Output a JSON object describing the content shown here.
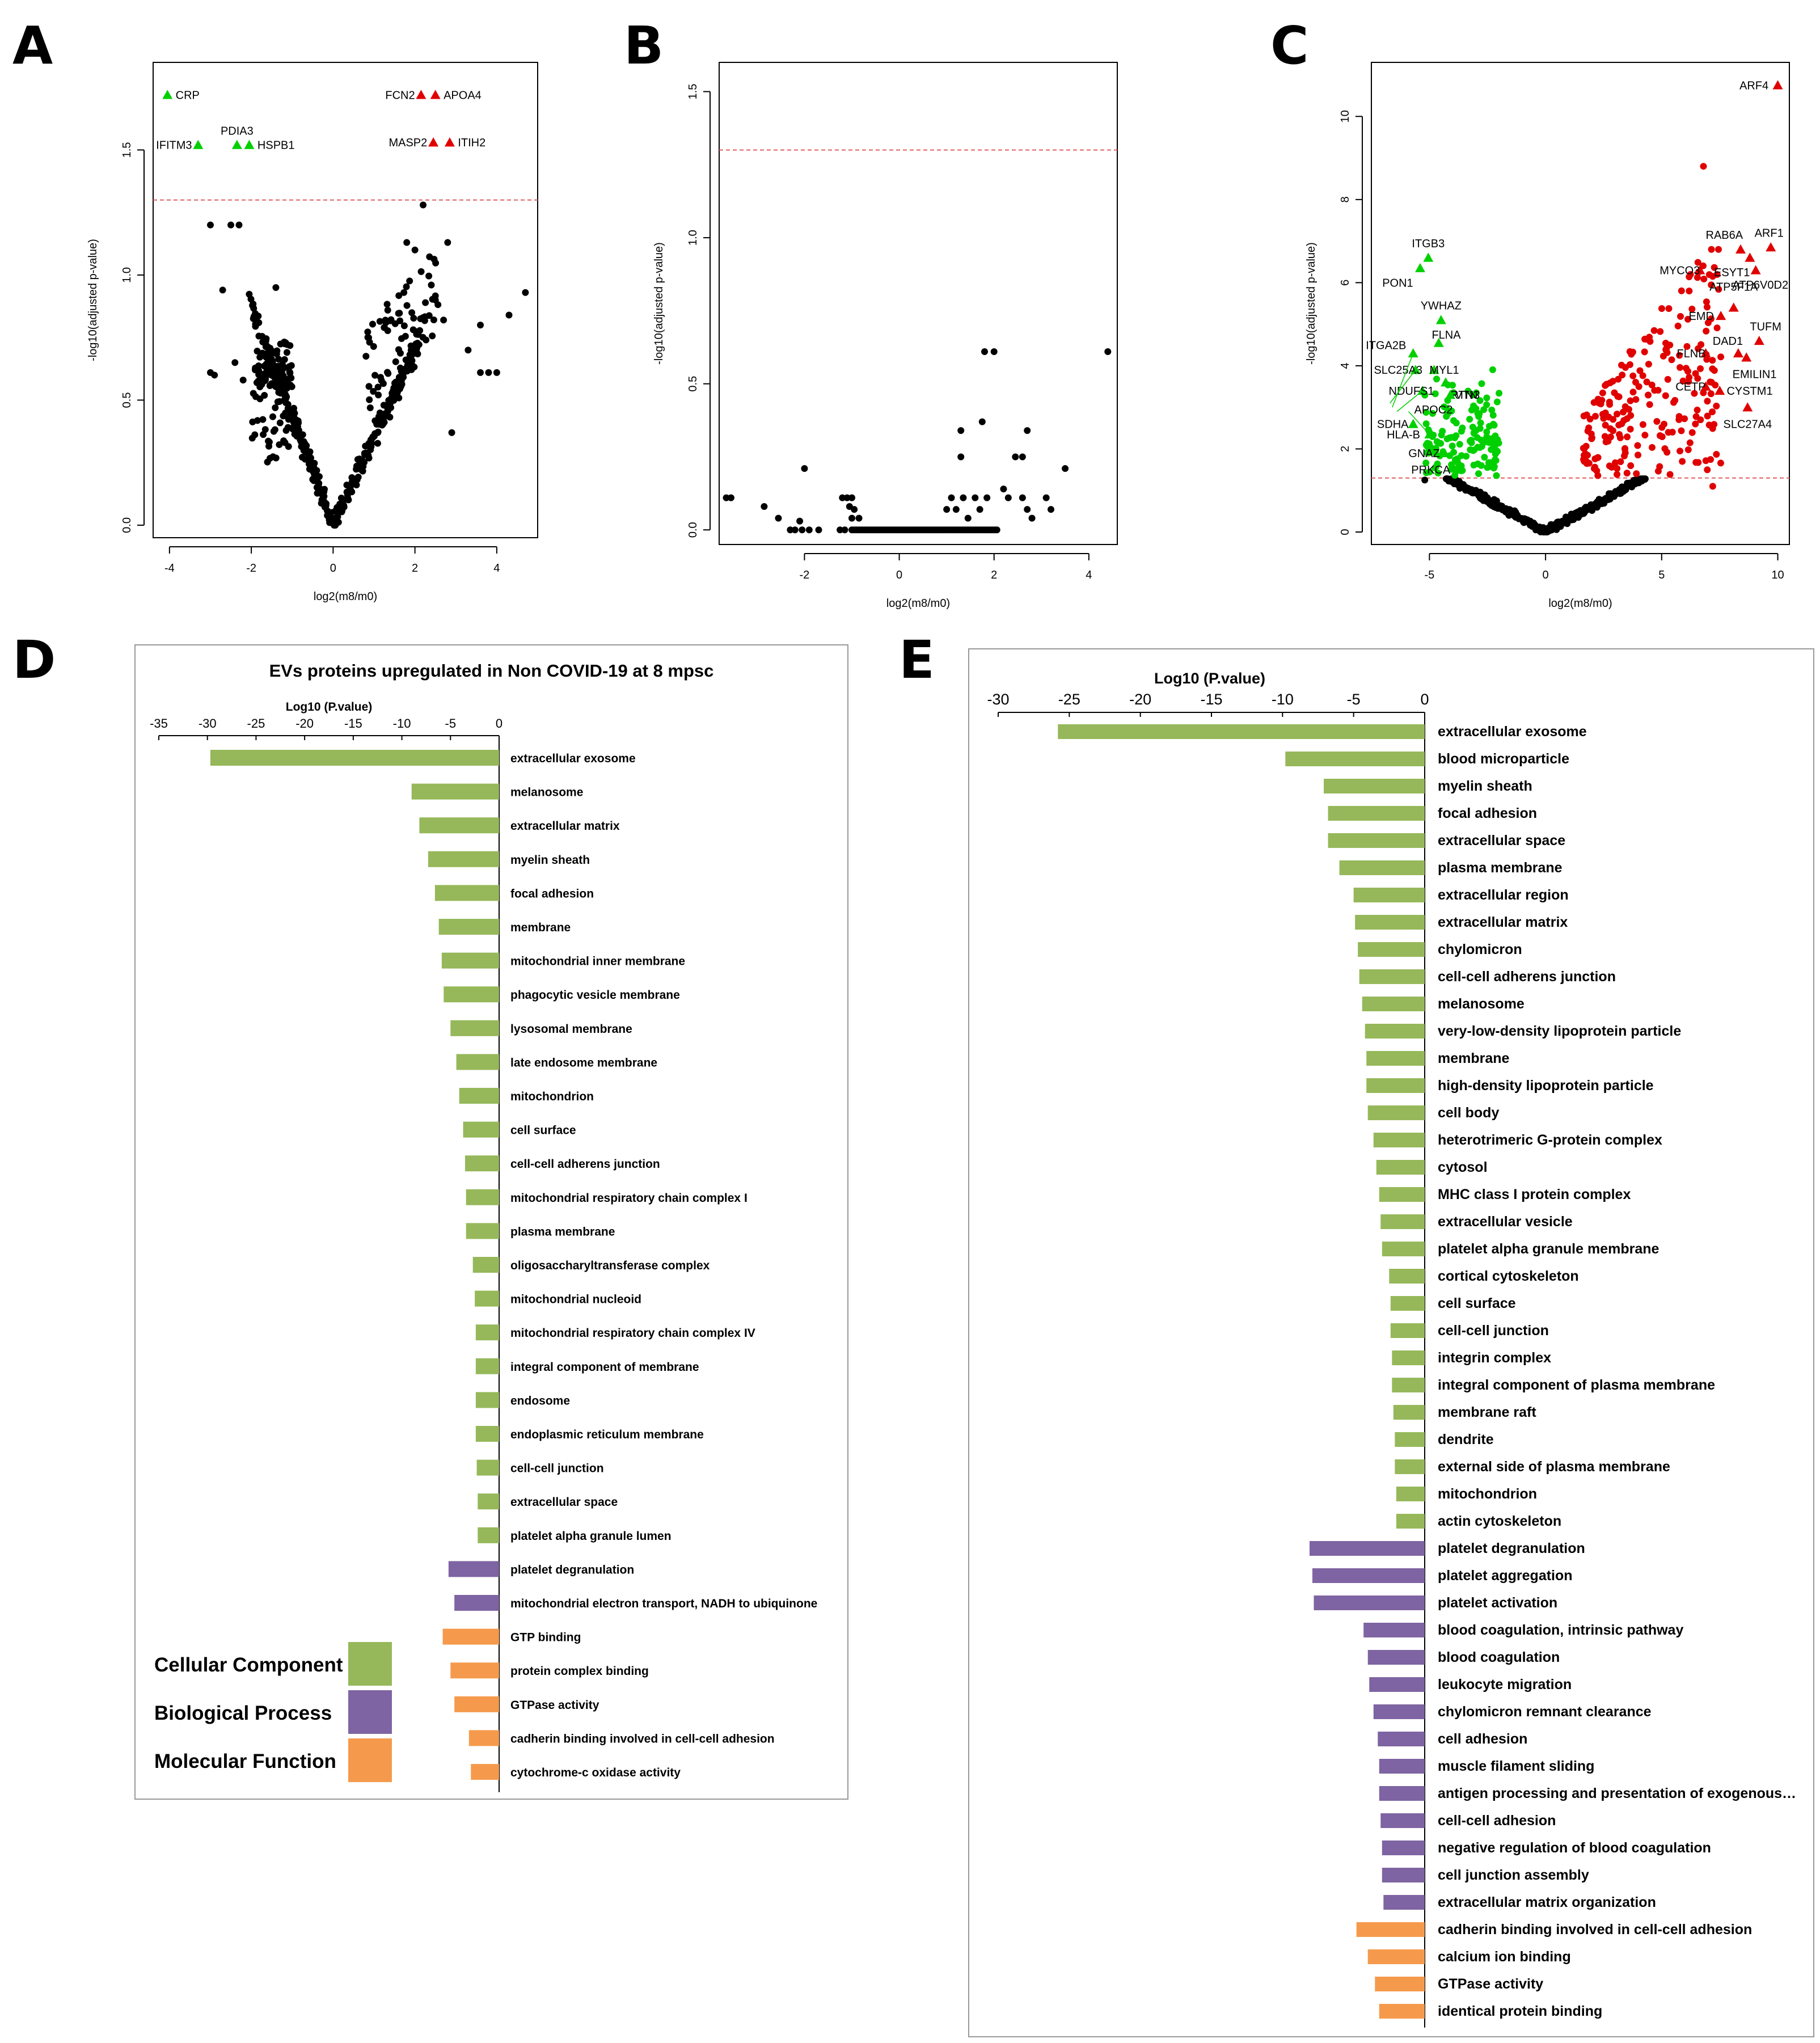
{
  "colors": {
    "cc": "#96b85a",
    "bp": "#7e64a2",
    "mf": "#f59a4c",
    "up": "#e00000",
    "down": "#00d000",
    "neutral": "#000000",
    "threshold": "#e06060"
  },
  "panels": {
    "a": "A",
    "b": "B",
    "c": "C",
    "d": "D",
    "e": "E"
  },
  "legend": {
    "cc": "Cellular Component",
    "bp": "Biological Process",
    "mf": "Molecular Function"
  },
  "chart_data": [
    {
      "id": "A",
      "type": "scatter",
      "xlabel": "log2(m8/m0)",
      "ylabel": "-log10(adjusted p-value)",
      "xlim": [
        -4.4,
        5.0
      ],
      "ylim": [
        -0.05,
        1.85
      ],
      "xticks": [
        -4,
        -2,
        0,
        2,
        4
      ],
      "yticks": [
        0.0,
        0.5,
        1.0,
        1.5
      ],
      "ytick_labels": [
        "0.0",
        "0.5",
        "1.0",
        "1.5"
      ],
      "threshold": 1.3,
      "labeled_points": [
        {
          "label": "CRP",
          "x": -4.05,
          "y": 1.72,
          "dir": "down",
          "anchor": "start",
          "dx": 0.2
        },
        {
          "label": "PDIA3",
          "x": -2.35,
          "y": 1.52,
          "dir": "down",
          "anchor": "middle",
          "dy": 0.05
        },
        {
          "label": "IFITM3",
          "x": -3.3,
          "y": 1.52,
          "dir": "down",
          "anchor": "end",
          "dx": -0.15
        },
        {
          "label": "HSPB1",
          "x": -2.05,
          "y": 1.52,
          "dir": "down",
          "anchor": "start",
          "dx": 0.2
        },
        {
          "label": "FCN2",
          "x": 2.15,
          "y": 1.72,
          "dir": "up",
          "anchor": "end",
          "dx": -0.15
        },
        {
          "label": "APOA4",
          "x": 2.5,
          "y": 1.72,
          "dir": "up",
          "anchor": "start",
          "dx": 0.2
        },
        {
          "label": "MASP2",
          "x": 2.45,
          "y": 1.53,
          "dir": "up",
          "anchor": "end",
          "dx": -0.15
        },
        {
          "label": "ITIH2",
          "x": 2.85,
          "y": 1.53,
          "dir": "up",
          "anchor": "start",
          "dx": 0.2
        }
      ],
      "outliers": [
        [
          -3.0,
          1.2
        ],
        [
          -2.5,
          1.2
        ],
        [
          -2.3,
          1.2
        ],
        [
          -2.7,
          0.94
        ],
        [
          -1.4,
          0.95
        ],
        [
          2.2,
          1.28
        ],
        [
          1.8,
          1.13
        ],
        [
          2.0,
          1.1
        ],
        [
          2.8,
          1.13
        ],
        [
          2.4,
          0.96
        ],
        [
          2.5,
          0.9
        ],
        [
          2.2,
          0.83
        ],
        [
          2.7,
          0.82
        ],
        [
          4.7,
          0.93
        ],
        [
          3.6,
          0.8
        ],
        [
          4.3,
          0.84
        ],
        [
          3.3,
          0.7
        ],
        [
          3.6,
          0.61
        ],
        [
          3.8,
          0.61
        ],
        [
          4.0,
          0.61
        ],
        [
          2.9,
          0.37
        ],
        [
          -3.0,
          0.61
        ],
        [
          -2.9,
          0.6
        ],
        [
          -2.4,
          0.65
        ],
        [
          -2.2,
          0.58
        ]
      ],
      "cloud": {
        "left_slope": 0.44,
        "right_slope": 0.35
      }
    },
    {
      "id": "B",
      "type": "scatter",
      "xlabel": "log2(m8/m0)",
      "ylabel": "-log10(adjusted p-value)",
      "xlim": [
        -3.8,
        4.6
      ],
      "ylim": [
        -0.05,
        1.6
      ],
      "xticks": [
        -2,
        0,
        2,
        4
      ],
      "yticks": [
        0.0,
        0.5,
        1.0,
        1.5
      ],
      "ytick_labels": [
        "0.0",
        "0.5",
        "1.0",
        "1.5"
      ],
      "threshold": 1.3,
      "points": [
        [
          -3.65,
          0.11
        ],
        [
          -3.55,
          0.11
        ],
        [
          -2.85,
          0.08
        ],
        [
          -2.55,
          0.04
        ],
        [
          -2.3,
          0.0
        ],
        [
          -2.2,
          0.0
        ],
        [
          -2.05,
          0.0
        ],
        [
          -1.9,
          0.0
        ],
        [
          -1.7,
          0.0
        ],
        [
          -2.1,
          0.03
        ],
        [
          -2.0,
          0.21
        ],
        [
          -1.2,
          0.11
        ],
        [
          -1.1,
          0.11
        ],
        [
          -1.05,
          0.08
        ],
        [
          -1.0,
          0.11
        ],
        [
          -0.95,
          0.07
        ],
        [
          -1.25,
          0.0
        ],
        [
          -1.15,
          0.0
        ],
        [
          -1.0,
          0.04
        ],
        [
          -0.85,
          0.04
        ],
        [
          1.0,
          0.07
        ],
        [
          1.1,
          0.11
        ],
        [
          1.2,
          0.07
        ],
        [
          1.35,
          0.11
        ],
        [
          1.45,
          0.04
        ],
        [
          1.6,
          0.11
        ],
        [
          1.7,
          0.07
        ],
        [
          1.85,
          0.11
        ],
        [
          2.3,
          0.11
        ],
        [
          2.6,
          0.11
        ],
        [
          2.7,
          0.07
        ],
        [
          2.8,
          0.04
        ],
        [
          3.1,
          0.11
        ],
        [
          3.2,
          0.07
        ],
        [
          1.3,
          0.34
        ],
        [
          1.75,
          0.37
        ],
        [
          1.8,
          0.61
        ],
        [
          2.0,
          0.61
        ],
        [
          2.45,
          0.25
        ],
        [
          2.6,
          0.25
        ],
        [
          2.7,
          0.34
        ],
        [
          3.5,
          0.21
        ],
        [
          4.4,
          0.61
        ],
        [
          1.3,
          0.25
        ],
        [
          2.2,
          0.14
        ]
      ],
      "baseline": {
        "from": -1.0,
        "to": 2.1,
        "step": 0.045
      }
    },
    {
      "id": "C",
      "type": "scatter",
      "xlabel": "log2(m8/m0)",
      "ylabel": "-log10(adjusted p-value)",
      "xlim": [
        -7.5,
        10.5
      ],
      "ylim": [
        -0.3,
        11.3
      ],
      "xticks": [
        -5,
        0,
        5,
        10
      ],
      "yticks": [
        0,
        2,
        4,
        6,
        8,
        10
      ],
      "ytick_labels": [
        "0",
        "2",
        "4",
        "6",
        "8",
        "10"
      ],
      "threshold": 1.3,
      "labeled_points": [
        {
          "label": "ARF4",
          "x": 10.0,
          "y": 10.75,
          "dir": "up",
          "anchor": "end",
          "dx": -0.4
        },
        {
          "label": "ITGB3",
          "x": -5.05,
          "y": 6.6,
          "dir": "down",
          "anchor": "middle",
          "dy": 0.35
        },
        {
          "label": "PON1",
          "x": -5.4,
          "y": 6.35,
          "dir": "down",
          "anchor": "end",
          "dx": -0.3,
          "dy": -0.35
        },
        {
          "label": "YWHAZ",
          "x": -4.5,
          "y": 5.1,
          "dir": "down",
          "anchor": "middle",
          "dy": 0.35
        },
        {
          "label": "FLNA",
          "x": -4.6,
          "y": 4.55,
          "dir": "down",
          "anchor": "start",
          "dx": -0.3,
          "dy": 0.2
        },
        {
          "label": "ITGA2B",
          "x": -5.7,
          "y": 4.3,
          "dir": "down",
          "anchor": "end",
          "dx": -0.3,
          "dy": 0.2
        },
        {
          "label": "SLC25A3",
          "x": -5.6,
          "y": 3.9,
          "dir": "down",
          "anchor": "end",
          "dx": 0.3
        },
        {
          "label": "MYL1",
          "x": -4.8,
          "y": 3.9,
          "dir": "down",
          "anchor": "start",
          "dx": -0.2
        },
        {
          "label": "RTN3",
          "x": -4.3,
          "y": 3.6,
          "dir": "down",
          "anchor": "start",
          "dx": 0.2,
          "dy": -0.3
        },
        {
          "label": "NDUFS1",
          "x": -5.3,
          "y": 3.4,
          "dir": "down",
          "anchor": "end",
          "dx": 0.5
        },
        {
          "label": "VTN",
          "x": -4.1,
          "y": 3.3,
          "dir": "down",
          "anchor": "start",
          "dx": 0.2
        },
        {
          "label": "APOC2",
          "x": -4.2,
          "y": 2.95,
          "dir": "down",
          "anchor": "end",
          "dx": 0.2
        },
        {
          "label": "SDHA",
          "x": -5.7,
          "y": 2.6,
          "dir": "down",
          "anchor": "end",
          "dx": -0.2
        },
        {
          "label": "HLA-B",
          "x": -5.0,
          "y": 2.35,
          "dir": "down",
          "anchor": "end",
          "dx": -0.4
        },
        {
          "label": "GNAZ",
          "x": -4.35,
          "y": 1.9,
          "dir": "down",
          "anchor": "end",
          "dx": -0.2
        },
        {
          "label": "PRKCA",
          "x": -3.8,
          "y": 1.5,
          "dir": "down",
          "anchor": "end",
          "dx": -0.3
        },
        {
          "label": "RAB6A",
          "x": 8.4,
          "y": 6.8,
          "dir": "up",
          "anchor": "end",
          "dx": 0.1,
          "dy": 0.35
        },
        {
          "label": "ARF1",
          "x": 9.7,
          "y": 6.85,
          "dir": "up",
          "anchor": "start",
          "dx": -0.7,
          "dy": 0.35
        },
        {
          "label": "ESYT1",
          "x": 8.8,
          "y": 6.6,
          "dir": "up",
          "anchor": "end",
          "dx": 0.0,
          "dy": -0.35
        },
        {
          "label": "MYCO3",
          "x": 6.65,
          "y": 6.3,
          "dir": "up",
          "anchor": "end",
          "dx": 0.0
        },
        {
          "label": "ATP6V0D2",
          "x": 9.05,
          "y": 6.3,
          "dir": "up",
          "anchor": "middle",
          "dx": 0.2,
          "dy": -0.35
        },
        {
          "label": "ATP5F1A",
          "x": 8.1,
          "y": 5.4,
          "dir": "up",
          "anchor": "middle",
          "dy": 0.5
        },
        {
          "label": "EMD",
          "x": 7.55,
          "y": 5.2,
          "dir": "up",
          "anchor": "end",
          "dx": -0.3
        },
        {
          "label": "TUFM",
          "x": 9.2,
          "y": 4.6,
          "dir": "up",
          "anchor": "start",
          "dx": -0.4,
          "dy": 0.35
        },
        {
          "label": "DAD1",
          "x": 8.3,
          "y": 4.3,
          "dir": "up",
          "anchor": "end",
          "dx": 0.2,
          "dy": 0.3
        },
        {
          "label": "FLNB",
          "x": 6.9,
          "y": 4.3,
          "dir": "up",
          "anchor": "end",
          "dx": 0.0
        },
        {
          "label": "EMILIN1",
          "x": 8.65,
          "y": 4.2,
          "dir": "up",
          "anchor": "start",
          "dx": -0.6,
          "dy": -0.4
        },
        {
          "label": "CETP",
          "x": 6.9,
          "y": 3.5,
          "dir": "up",
          "anchor": "end",
          "dx": 0.0
        },
        {
          "label": "CYSTM1",
          "x": 7.5,
          "y": 3.4,
          "dir": "up",
          "anchor": "start",
          "dx": 0.3
        },
        {
          "label": "SLC27A4",
          "x": 8.7,
          "y": 3.0,
          "dir": "up",
          "anchor": "middle",
          "dy": -0.4
        }
      ]
    },
    {
      "id": "D",
      "type": "bar",
      "title": "EVs proteins upregulated in Non COVID-19 at 8 mpsc",
      "xlabel": "Log10 (P.value)",
      "xlim": [
        -35,
        0
      ],
      "xticks": [
        -35,
        -30,
        -25,
        -20,
        -15,
        -10,
        -5,
        0
      ],
      "categories": [
        "extracellular exosome",
        "melanosome",
        "extracellular matrix",
        "myelin sheath",
        "focal adhesion",
        "membrane",
        "mitochondrial inner membrane",
        "phagocytic vesicle membrane",
        "lysosomal membrane",
        "late endosome membrane",
        "mitochondrion",
        "cell surface",
        "cell-cell adherens junction",
        "mitochondrial respiratory chain complex I",
        "plasma membrane",
        "oligosaccharyltransferase complex",
        "mitochondrial nucleoid",
        "mitochondrial respiratory chain complex IV",
        "integral component of membrane",
        "endosome",
        "endoplasmic reticulum membrane",
        "cell-cell junction",
        "extracellular space",
        "platelet alpha granule lumen",
        "platelet degranulation",
        "mitochondrial electron transport, NADH to ubiquinone",
        "GTP binding",
        "protein complex binding",
        "GTPase activity",
        "cadherin binding involved in cell-cell adhesion",
        "cytochrome-c oxidase activity"
      ],
      "values": [
        -29.7,
        -9.0,
        -8.2,
        -7.3,
        -6.6,
        -6.2,
        -5.9,
        -5.7,
        -5.0,
        -4.4,
        -4.1,
        -3.7,
        -3.5,
        -3.4,
        -3.4,
        -2.7,
        -2.5,
        -2.4,
        -2.4,
        -2.4,
        -2.4,
        -2.3,
        -2.2,
        -2.2,
        -5.2,
        -4.6,
        -5.8,
        -5.0,
        -4.6,
        -3.1,
        -2.9
      ],
      "groups": [
        "cc",
        "cc",
        "cc",
        "cc",
        "cc",
        "cc",
        "cc",
        "cc",
        "cc",
        "cc",
        "cc",
        "cc",
        "cc",
        "cc",
        "cc",
        "cc",
        "cc",
        "cc",
        "cc",
        "cc",
        "cc",
        "cc",
        "cc",
        "cc",
        "bp",
        "bp",
        "mf",
        "mf",
        "mf",
        "mf",
        "mf"
      ]
    },
    {
      "id": "E",
      "type": "bar",
      "xlabel": "Log10 (P.value)",
      "xlim": [
        -30,
        0
      ],
      "xticks": [
        -30,
        -25,
        -20,
        -15,
        -10,
        -5,
        0
      ],
      "categories": [
        "extracellular exosome",
        "blood microparticle",
        "myelin sheath",
        "focal adhesion",
        "extracellular space",
        "plasma membrane",
        "extracellular region",
        "extracellular matrix",
        "chylomicron",
        "cell-cell adherens junction",
        "melanosome",
        "very-low-density lipoprotein particle",
        "membrane",
        "high-density lipoprotein particle",
        "cell body",
        "heterotrimeric G-protein complex",
        "cytosol",
        "MHC class I protein complex",
        "extracellular vesicle",
        "platelet alpha granule membrane",
        "cortical cytoskeleton",
        "cell surface",
        "cell-cell junction",
        "integrin complex",
        "integral component of plasma membrane",
        "membrane raft",
        "dendrite",
        "external side of plasma membrane",
        "mitochondrion",
        "actin cytoskeleton",
        "platelet degranulation",
        "platelet aggregation",
        "platelet activation",
        "blood coagulation, intrinsic pathway",
        "blood coagulation",
        "leukocyte migration",
        "chylomicron remnant clearance",
        "cell adhesion",
        "muscle filament sliding",
        "antigen processing and presentation of exogenous…",
        "cell-cell adhesion",
        "negative regulation of blood coagulation",
        "cell junction assembly",
        "extracellular matrix organization",
        "cadherin binding involved in cell-cell adhesion",
        "calcium ion binding",
        "GTPase activity",
        "identical protein binding"
      ],
      "values": [
        -25.8,
        -9.8,
        -7.1,
        -6.8,
        -6.8,
        -6.0,
        -5.0,
        -4.9,
        -4.7,
        -4.6,
        -4.4,
        -4.2,
        -4.1,
        -4.1,
        -4.0,
        -3.6,
        -3.4,
        -3.2,
        -3.1,
        -3.0,
        -2.5,
        -2.4,
        -2.4,
        -2.3,
        -2.3,
        -2.2,
        -2.1,
        -2.1,
        -2.0,
        -2.0,
        -8.1,
        -7.9,
        -7.8,
        -4.3,
        -4.0,
        -3.9,
        -3.6,
        -3.3,
        -3.2,
        -3.2,
        -3.1,
        -3.0,
        -3.0,
        -2.9,
        -4.8,
        -4.0,
        -3.5,
        -3.2
      ],
      "groups": [
        "cc",
        "cc",
        "cc",
        "cc",
        "cc",
        "cc",
        "cc",
        "cc",
        "cc",
        "cc",
        "cc",
        "cc",
        "cc",
        "cc",
        "cc",
        "cc",
        "cc",
        "cc",
        "cc",
        "cc",
        "cc",
        "cc",
        "cc",
        "cc",
        "cc",
        "cc",
        "cc",
        "cc",
        "cc",
        "cc",
        "bp",
        "bp",
        "bp",
        "bp",
        "bp",
        "bp",
        "bp",
        "bp",
        "bp",
        "bp",
        "bp",
        "bp",
        "bp",
        "bp",
        "mf",
        "mf",
        "mf",
        "mf"
      ]
    }
  ]
}
